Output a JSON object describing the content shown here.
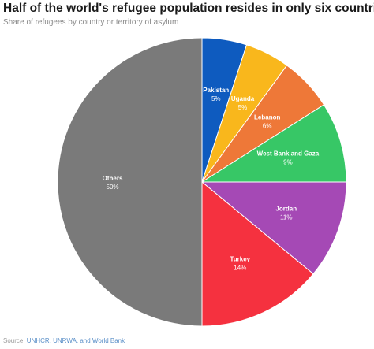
{
  "header": {
    "title": "Half of the world's refugee population resides in only six countries",
    "subtitle": "Share of refugees by country or territory of asylum"
  },
  "footer": {
    "source_label": "Source: ",
    "source_text": "UNHCR, UNRWA, and World Bank"
  },
  "chart_data": {
    "type": "pie",
    "title": "Half of the world's refugee population resides in only six countries",
    "subtitle": "Share of refugees by country or territory of asylum",
    "slices": [
      {
        "label": "Pakistan",
        "value": 5,
        "value_label": "5%",
        "color": "#0e5bbf"
      },
      {
        "label": "Uganda",
        "value": 5,
        "value_label": "5%",
        "color": "#f9b71c"
      },
      {
        "label": "Lebanon",
        "value": 6,
        "value_label": "6%",
        "color": "#ee7838"
      },
      {
        "label": "West Bank and Gaza",
        "value": 9,
        "value_label": "9%",
        "color": "#37c766"
      },
      {
        "label": "Jordan",
        "value": 11,
        "value_label": "11%",
        "color": "#a549b5"
      },
      {
        "label": "Turkey",
        "value": 14,
        "value_label": "14%",
        "color": "#f5313f"
      },
      {
        "label": "Others",
        "value": 50,
        "value_label": "50%",
        "color": "#7a7a7a"
      }
    ],
    "start_angle_deg": 0,
    "direction": "clockwise"
  }
}
